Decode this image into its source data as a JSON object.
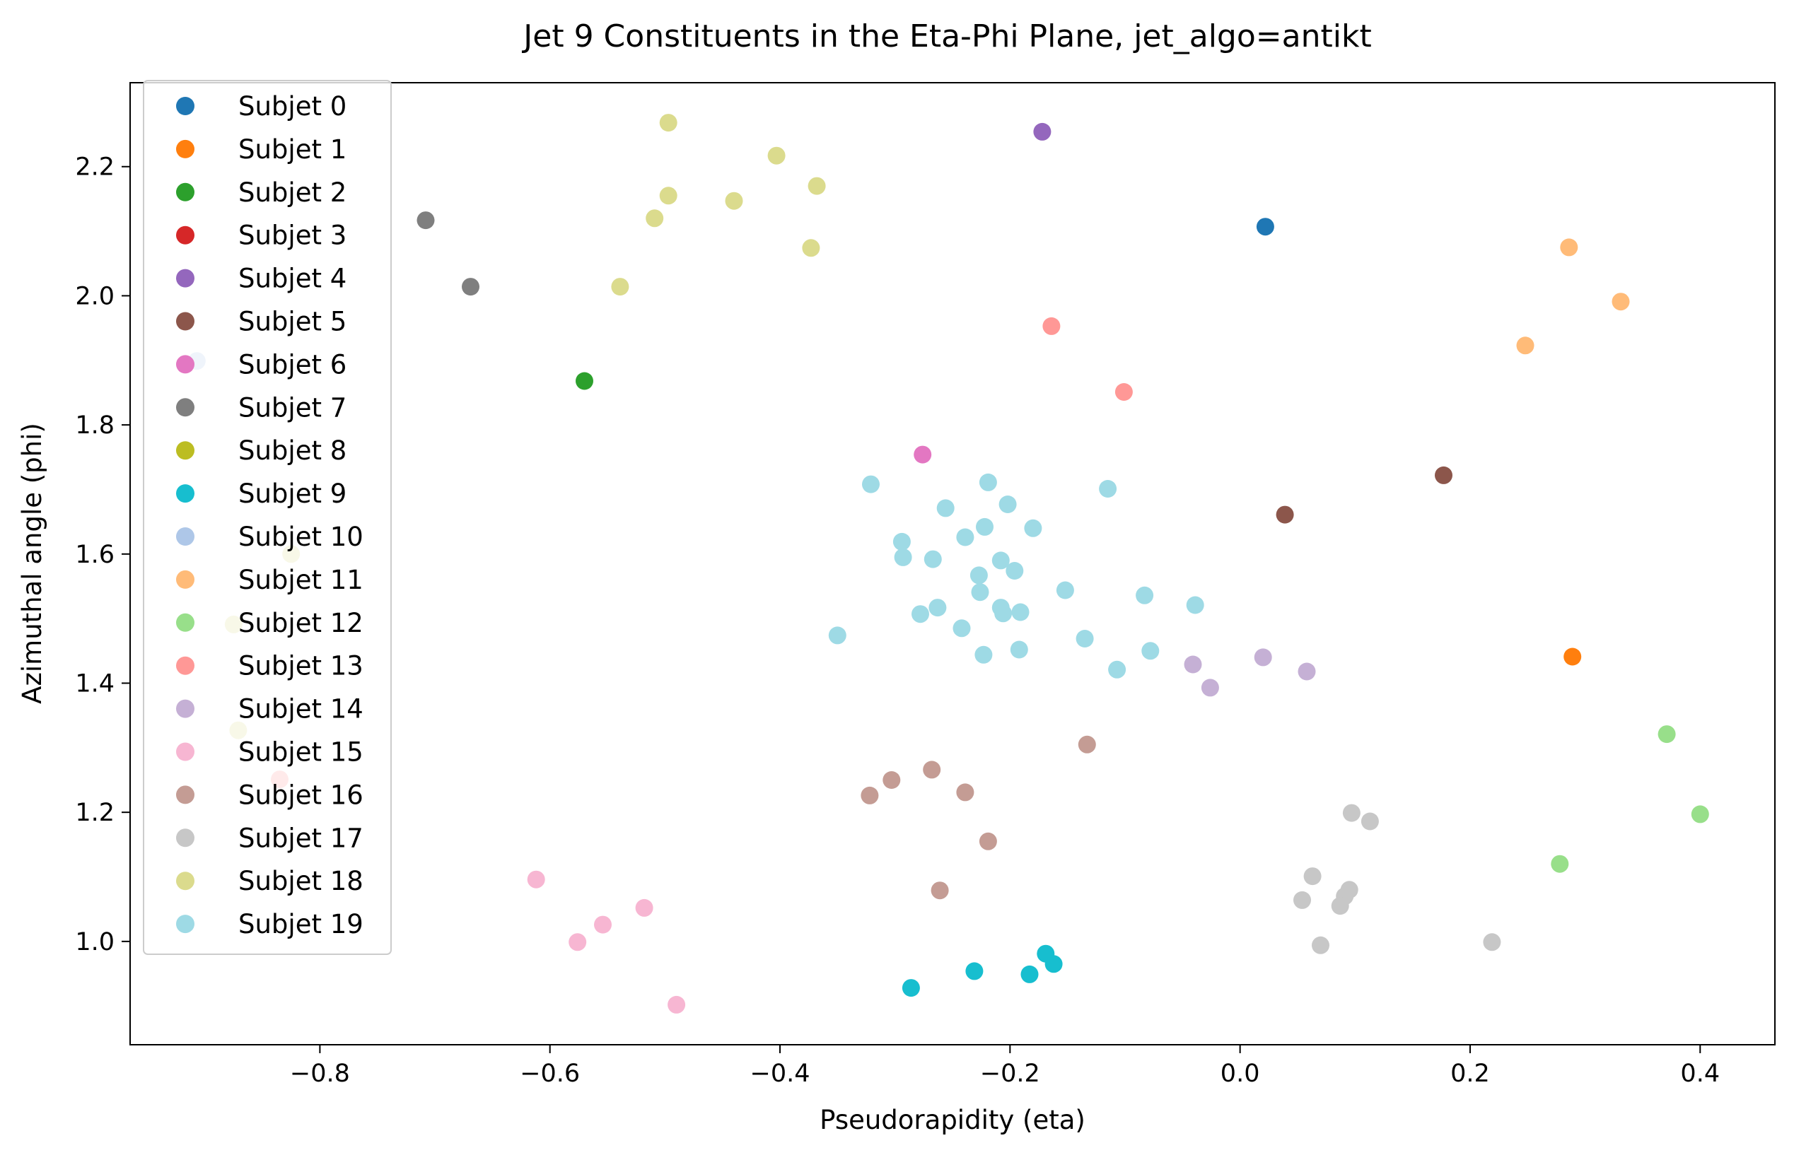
{
  "chart_data": {
    "type": "scatter",
    "title": "Jet 9 Constituents in the Eta-Phi Plane, jet_algo=antikt",
    "xlabel": "Pseudorapidity (eta)",
    "ylabel": "Azimuthal angle (phi)",
    "xlim": [
      -0.965,
      0.465
    ],
    "ylim": [
      0.84,
      2.33
    ],
    "xticks": [
      -0.8,
      -0.6,
      -0.4,
      -0.2,
      0.0,
      0.2,
      0.4
    ],
    "xtick_labels": [
      "−0.8",
      "−0.6",
      "−0.4",
      "−0.2",
      "0.0",
      "0.2",
      "0.4"
    ],
    "yticks": [
      1.0,
      1.2,
      1.4,
      1.6,
      1.8,
      2.0,
      2.2
    ],
    "ytick_labels": [
      "1.0",
      "1.2",
      "1.4",
      "1.6",
      "1.8",
      "2.0",
      "2.2"
    ],
    "grid": false,
    "legend_position": "upper-left",
    "series": [
      {
        "name": "Subjet 0",
        "color": "#1f77b4",
        "points": [
          [
            0.022,
            2.107
          ]
        ]
      },
      {
        "name": "Subjet 1",
        "color": "#ff7f0e",
        "points": [
          [
            0.289,
            1.441
          ]
        ]
      },
      {
        "name": "Subjet 2",
        "color": "#2ca02c",
        "points": [
          [
            -0.57,
            1.868
          ]
        ]
      },
      {
        "name": "Subjet 3",
        "color": "#d62728",
        "points": []
      },
      {
        "name": "Subjet 4",
        "color": "#9467bd",
        "points": [
          [
            -0.172,
            2.254
          ]
        ]
      },
      {
        "name": "Subjet 5",
        "color": "#8c564b",
        "points": [
          [
            0.177,
            1.722
          ],
          [
            0.039,
            1.661
          ]
        ]
      },
      {
        "name": "Subjet 6",
        "color": "#e377c2",
        "points": [
          [
            -0.276,
            1.754
          ]
        ]
      },
      {
        "name": "Subjet 7",
        "color": "#7f7f7f",
        "points": [
          [
            -0.708,
            2.117
          ],
          [
            -0.669,
            2.014
          ]
        ]
      },
      {
        "name": "Subjet 8",
        "color": "#bcbd22",
        "points": []
      },
      {
        "name": "Subjet 9",
        "color": "#17becf",
        "points": [
          [
            -0.286,
            0.928
          ],
          [
            -0.231,
            0.954
          ],
          [
            -0.169,
            0.981
          ],
          [
            -0.162,
            0.965
          ],
          [
            -0.183,
            0.949
          ]
        ]
      },
      {
        "name": "Subjet 10",
        "color": "#aec7e8",
        "points": [
          [
            -0.907,
            1.899
          ]
        ]
      },
      {
        "name": "Subjet 11",
        "color": "#ffbb78",
        "points": [
          [
            0.286,
            2.075
          ],
          [
            0.331,
            1.991
          ],
          [
            0.248,
            1.923
          ]
        ]
      },
      {
        "name": "Subjet 12",
        "color": "#98df8a",
        "points": [
          [
            0.371,
            1.321
          ],
          [
            0.4,
            1.197
          ],
          [
            0.278,
            1.12
          ]
        ]
      },
      {
        "name": "Subjet 13",
        "color": "#ff9896",
        "points": [
          [
            -0.164,
            1.953
          ],
          [
            -0.101,
            1.851
          ],
          [
            -0.835,
            1.251
          ]
        ]
      },
      {
        "name": "Subjet 14",
        "color": "#c5b0d5",
        "points": [
          [
            -0.041,
            1.429
          ],
          [
            0.02,
            1.44
          ],
          [
            0.058,
            1.418
          ],
          [
            -0.026,
            1.393
          ]
        ]
      },
      {
        "name": "Subjet 15",
        "color": "#f7b6d2",
        "points": [
          [
            -0.612,
            1.096
          ],
          [
            -0.518,
            1.052
          ],
          [
            -0.554,
            1.026
          ],
          [
            -0.576,
            0.999
          ],
          [
            -0.49,
            0.902
          ]
        ]
      },
      {
        "name": "Subjet 16",
        "color": "#c49c94",
        "points": [
          [
            -0.133,
            1.305
          ],
          [
            -0.268,
            1.266
          ],
          [
            -0.303,
            1.25
          ],
          [
            -0.322,
            1.226
          ],
          [
            -0.239,
            1.231
          ],
          [
            -0.219,
            1.155
          ],
          [
            -0.261,
            1.079
          ]
        ]
      },
      {
        "name": "Subjet 17",
        "color": "#c7c7c7",
        "points": [
          [
            0.097,
            1.199
          ],
          [
            0.113,
            1.186
          ],
          [
            0.063,
            1.101
          ],
          [
            0.095,
            1.08
          ],
          [
            0.091,
            1.07
          ],
          [
            0.054,
            1.064
          ],
          [
            0.087,
            1.055
          ],
          [
            0.07,
            0.994
          ],
          [
            0.219,
            0.999
          ]
        ]
      },
      {
        "name": "Subjet 18",
        "color": "#dbdb8d",
        "points": [
          [
            -0.497,
            2.268
          ],
          [
            -0.403,
            2.217
          ],
          [
            -0.368,
            2.17
          ],
          [
            -0.497,
            2.155
          ],
          [
            -0.44,
            2.147
          ],
          [
            -0.509,
            2.12
          ],
          [
            -0.373,
            2.074
          ],
          [
            -0.539,
            2.014
          ],
          [
            -0.825,
            1.6
          ],
          [
            -0.875,
            1.491
          ],
          [
            -0.871,
            1.327
          ]
        ]
      },
      {
        "name": "Subjet 19",
        "color": "#9edae5",
        "points": [
          [
            -0.321,
            1.708
          ],
          [
            -0.219,
            1.711
          ],
          [
            -0.115,
            1.701
          ],
          [
            -0.256,
            1.671
          ],
          [
            -0.202,
            1.677
          ],
          [
            -0.222,
            1.642
          ],
          [
            -0.18,
            1.64
          ],
          [
            -0.239,
            1.626
          ],
          [
            -0.294,
            1.619
          ],
          [
            -0.293,
            1.595
          ],
          [
            -0.267,
            1.592
          ],
          [
            -0.208,
            1.59
          ],
          [
            -0.196,
            1.574
          ],
          [
            -0.227,
            1.567
          ],
          [
            -0.152,
            1.544
          ],
          [
            -0.226,
            1.541
          ],
          [
            -0.083,
            1.536
          ],
          [
            -0.039,
            1.521
          ],
          [
            -0.263,
            1.517
          ],
          [
            -0.208,
            1.517
          ],
          [
            -0.191,
            1.51
          ],
          [
            -0.206,
            1.508
          ],
          [
            -0.278,
            1.507
          ],
          [
            -0.242,
            1.485
          ],
          [
            -0.35,
            1.474
          ],
          [
            -0.135,
            1.469
          ],
          [
            -0.078,
            1.45
          ],
          [
            -0.192,
            1.452
          ],
          [
            -0.223,
            1.444
          ],
          [
            -0.107,
            1.421
          ]
        ]
      }
    ]
  }
}
